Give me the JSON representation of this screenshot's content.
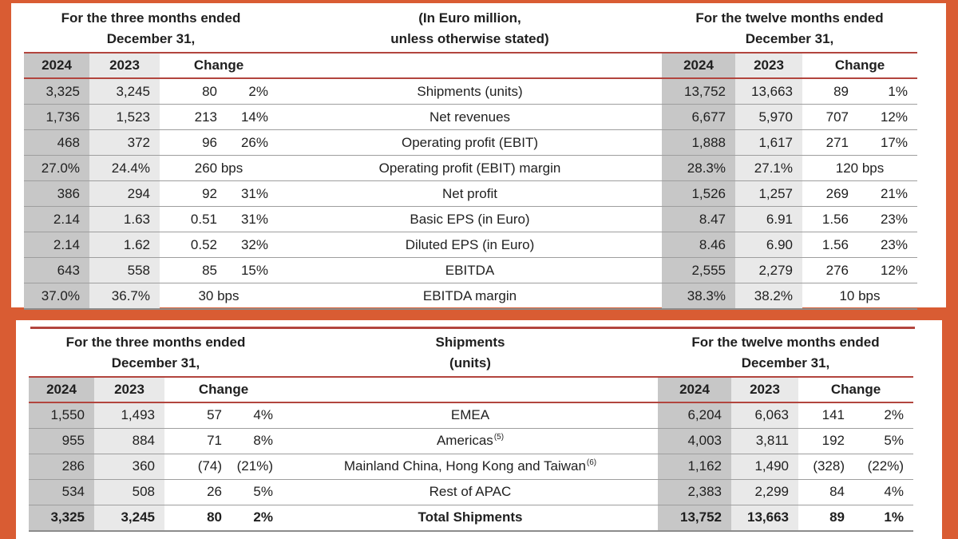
{
  "page": {
    "background": "#d95c33",
    "panel": "#ffffff",
    "rule_red": "#b2453e",
    "col2024_bg": "#c7c7c7",
    "col2023_bg": "#e9e9e9",
    "divider": "#9e9e9e"
  },
  "financial_table": {
    "period_left": {
      "line1": "For the three months ended",
      "line2": "December 31,"
    },
    "unit_note": {
      "line1": "(In Euro million,",
      "line2": "unless otherwise stated)"
    },
    "period_right": {
      "line1": "For the twelve months ended",
      "line2": "December 31,"
    },
    "columns": {
      "y2024": "2024",
      "y2023": "2023",
      "change": "Change"
    },
    "rows": [
      {
        "label": "Shipments (units)",
        "q2024": "3,325",
        "q2023": "3,245",
        "q_chg": "80",
        "q_pct": "2%",
        "fy2024": "13,752",
        "fy2023": "13,663",
        "fy_chg": "89",
        "fy_pct": "1%"
      },
      {
        "label": "Net revenues",
        "q2024": "1,736",
        "q2023": "1,523",
        "q_chg": "213",
        "q_pct": "14%",
        "fy2024": "6,677",
        "fy2023": "5,970",
        "fy_chg": "707",
        "fy_pct": "12%"
      },
      {
        "label": "Operating profit (EBIT)",
        "q2024": "468",
        "q2023": "372",
        "q_chg": "96",
        "q_pct": "26%",
        "fy2024": "1,888",
        "fy2023": "1,617",
        "fy_chg": "271",
        "fy_pct": "17%"
      },
      {
        "label": "Operating profit (EBIT) margin",
        "q2024": "27.0%",
        "q2023": "24.4%",
        "q_chg": "260 bps",
        "q_pct": "",
        "fy2024": "28.3%",
        "fy2023": "27.1%",
        "fy_chg": "120 bps",
        "fy_pct": "",
        "span_change": true
      },
      {
        "label": "Net profit",
        "q2024": "386",
        "q2023": "294",
        "q_chg": "92",
        "q_pct": "31%",
        "fy2024": "1,526",
        "fy2023": "1,257",
        "fy_chg": "269",
        "fy_pct": "21%"
      },
      {
        "label": "Basic EPS (in Euro)",
        "q2024": "2.14",
        "q2023": "1.63",
        "q_chg": "0.51",
        "q_pct": "31%",
        "fy2024": "8.47",
        "fy2023": "6.91",
        "fy_chg": "1.56",
        "fy_pct": "23%"
      },
      {
        "label": "Diluted EPS (in Euro)",
        "q2024": "2.14",
        "q2023": "1.62",
        "q_chg": "0.52",
        "q_pct": "32%",
        "fy2024": "8.46",
        "fy2023": "6.90",
        "fy_chg": "1.56",
        "fy_pct": "23%"
      },
      {
        "label": "EBITDA",
        "q2024": "643",
        "q2023": "558",
        "q_chg": "85",
        "q_pct": "15%",
        "fy2024": "2,555",
        "fy2023": "2,279",
        "fy_chg": "276",
        "fy_pct": "12%"
      },
      {
        "label": "EBITDA margin",
        "q2024": "37.0%",
        "q2023": "36.7%",
        "q_chg": "30 bps",
        "q_pct": "",
        "fy2024": "38.3%",
        "fy2023": "38.2%",
        "fy_chg": "10 bps",
        "fy_pct": "",
        "span_change": true
      }
    ]
  },
  "shipments_table": {
    "period_left": {
      "line1": "For the three months ended",
      "line2": "December 31,"
    },
    "title": {
      "line1": "Shipments",
      "line2": "(units)"
    },
    "period_right": {
      "line1": "For the twelve months ended",
      "line2": "December 31,"
    },
    "columns": {
      "y2024": "2024",
      "y2023": "2023",
      "change": "Change"
    },
    "rows": [
      {
        "label": "EMEA",
        "q2024": "1,550",
        "q2023": "1,493",
        "q_chg": "57",
        "q_pct": "4%",
        "fy2024": "6,204",
        "fy2023": "6,063",
        "fy_chg": "141",
        "fy_pct": "2%"
      },
      {
        "label": "Americas",
        "sup": "(5)",
        "q2024": "955",
        "q2023": "884",
        "q_chg": "71",
        "q_pct": "8%",
        "fy2024": "4,003",
        "fy2023": "3,811",
        "fy_chg": "192",
        "fy_pct": "5%"
      },
      {
        "label": "Mainland China, Hong Kong and Taiwan",
        "sup": "(6)",
        "q2024": "286",
        "q2023": "360",
        "q_chg": "(74)",
        "q_pct": "(21%)",
        "fy2024": "1,162",
        "fy2023": "1,490",
        "fy_chg": "(328)",
        "fy_pct": "(22%)"
      },
      {
        "label": "Rest of APAC",
        "q2024": "534",
        "q2023": "508",
        "q_chg": "26",
        "q_pct": "5%",
        "fy2024": "2,383",
        "fy2023": "2,299",
        "fy_chg": "84",
        "fy_pct": "4%"
      },
      {
        "label": "Total Shipments",
        "bold": true,
        "q2024": "3,325",
        "q2023": "3,245",
        "q_chg": "80",
        "q_pct": "2%",
        "fy2024": "13,752",
        "fy2023": "13,663",
        "fy_chg": "89",
        "fy_pct": "1%"
      }
    ]
  }
}
